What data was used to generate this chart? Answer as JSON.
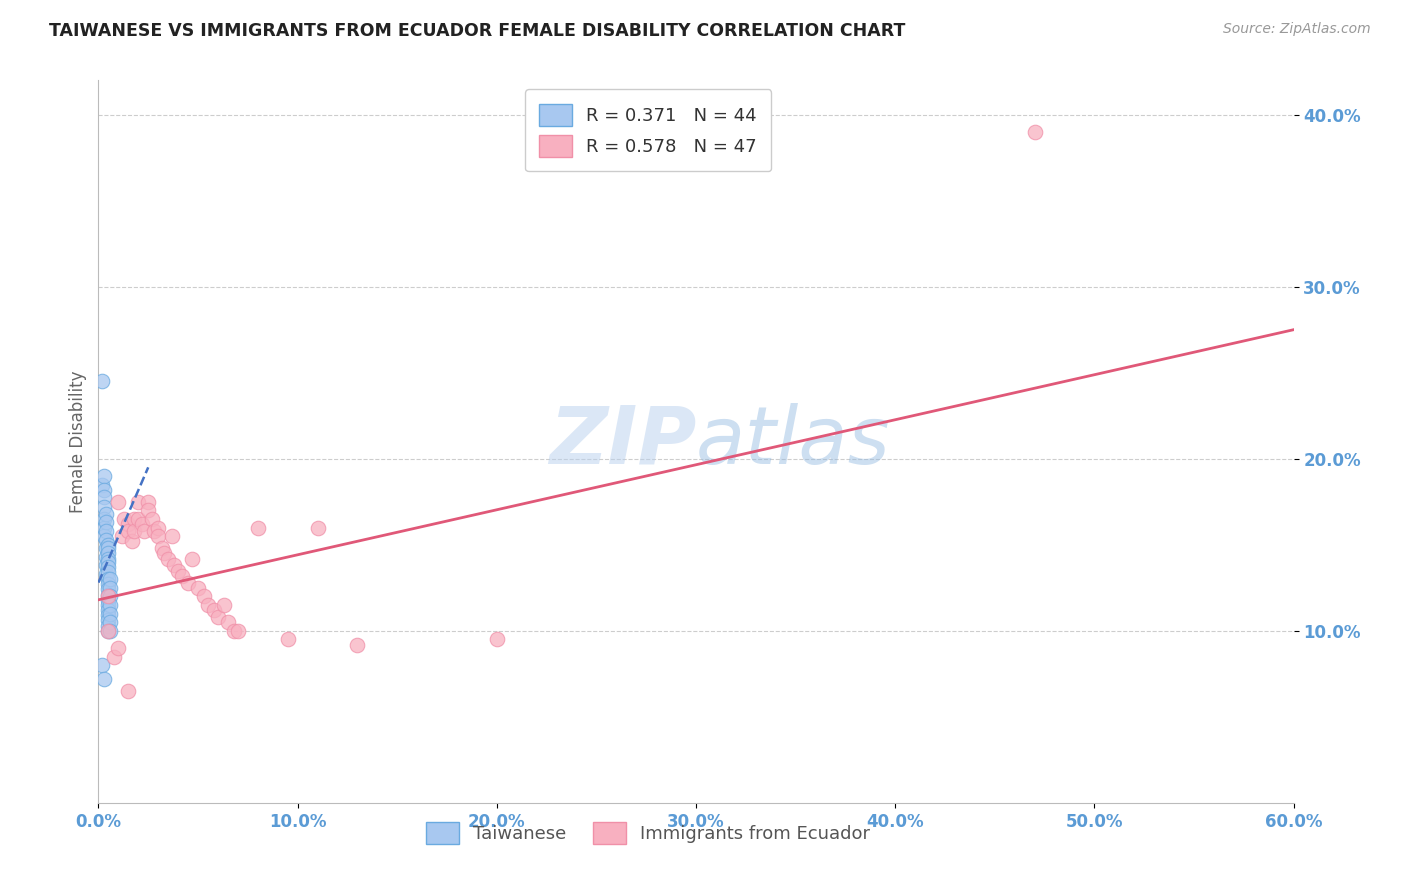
{
  "title": "TAIWANESE VS IMMIGRANTS FROM ECUADOR FEMALE DISABILITY CORRELATION CHART",
  "source": "Source: ZipAtlas.com",
  "ylabel_label": "Female Disability",
  "watermark_zip": "ZIP",
  "watermark_atlas": "atlas",
  "xlim": [
    0.0,
    0.6
  ],
  "ylim": [
    0.0,
    0.42
  ],
  "xticks": [
    0.0,
    0.1,
    0.2,
    0.3,
    0.4,
    0.5,
    0.6
  ],
  "yticks": [
    0.1,
    0.2,
    0.3,
    0.4
  ],
  "tick_color": "#5b9bd5",
  "grid_color": "#c8c8c8",
  "background_color": "#ffffff",
  "taiwanese_R": 0.371,
  "taiwanese_N": 44,
  "ecuador_R": 0.578,
  "ecuador_N": 47,
  "taiwanese_face_color": "#a8c8f0",
  "taiwanese_edge_color": "#6aaae0",
  "ecuador_face_color": "#f8b0c0",
  "ecuador_edge_color": "#f090a8",
  "taiwanese_line_color": "#4472c4",
  "ecuador_line_color": "#e05878",
  "taiwanese_x": [
    0.002,
    0.002,
    0.003,
    0.003,
    0.003,
    0.003,
    0.003,
    0.003,
    0.003,
    0.004,
    0.004,
    0.004,
    0.004,
    0.004,
    0.004,
    0.004,
    0.004,
    0.005,
    0.005,
    0.005,
    0.005,
    0.005,
    0.005,
    0.005,
    0.005,
    0.005,
    0.005,
    0.005,
    0.005,
    0.005,
    0.005,
    0.005,
    0.005,
    0.005,
    0.005,
    0.006,
    0.006,
    0.006,
    0.006,
    0.006,
    0.006,
    0.006,
    0.002,
    0.003
  ],
  "taiwanese_y": [
    0.245,
    0.185,
    0.19,
    0.182,
    0.178,
    0.172,
    0.165,
    0.16,
    0.155,
    0.168,
    0.163,
    0.158,
    0.153,
    0.148,
    0.143,
    0.138,
    0.133,
    0.15,
    0.148,
    0.145,
    0.142,
    0.14,
    0.137,
    0.134,
    0.13,
    0.127,
    0.124,
    0.121,
    0.118,
    0.115,
    0.112,
    0.109,
    0.106,
    0.103,
    0.1,
    0.13,
    0.125,
    0.12,
    0.115,
    0.11,
    0.105,
    0.1,
    0.08,
    0.072
  ],
  "ecuador_x": [
    0.005,
    0.008,
    0.01,
    0.012,
    0.013,
    0.015,
    0.015,
    0.017,
    0.018,
    0.018,
    0.02,
    0.02,
    0.022,
    0.023,
    0.025,
    0.025,
    0.027,
    0.028,
    0.03,
    0.03,
    0.032,
    0.033,
    0.035,
    0.037,
    0.038,
    0.04,
    0.042,
    0.045,
    0.047,
    0.05,
    0.053,
    0.055,
    0.058,
    0.06,
    0.063,
    0.065,
    0.068,
    0.07,
    0.08,
    0.095,
    0.11,
    0.13,
    0.2,
    0.47,
    0.005,
    0.01,
    0.015
  ],
  "ecuador_y": [
    0.1,
    0.085,
    0.175,
    0.155,
    0.165,
    0.162,
    0.158,
    0.152,
    0.165,
    0.158,
    0.175,
    0.165,
    0.162,
    0.158,
    0.175,
    0.17,
    0.165,
    0.158,
    0.16,
    0.155,
    0.148,
    0.145,
    0.142,
    0.155,
    0.138,
    0.135,
    0.132,
    0.128,
    0.142,
    0.125,
    0.12,
    0.115,
    0.112,
    0.108,
    0.115,
    0.105,
    0.1,
    0.1,
    0.16,
    0.095,
    0.16,
    0.092,
    0.095,
    0.39,
    0.12,
    0.09,
    0.065
  ],
  "taiwanese_trend_x": [
    0.0,
    0.025
  ],
  "taiwanese_trend_y": [
    0.128,
    0.195
  ],
  "ecuador_trend_x": [
    0.0,
    0.6
  ],
  "ecuador_trend_y": [
    0.118,
    0.275
  ]
}
